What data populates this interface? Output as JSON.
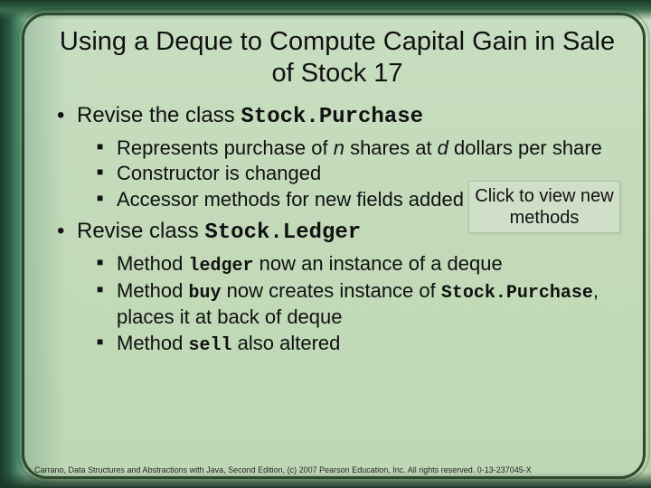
{
  "slide": {
    "title": "Using a Deque to Compute Capital Gain in Sale of Stock 17",
    "bullet1_prefix": "Revise the class ",
    "bullet1_code": "Stock.Purchase",
    "sub1a_a": "Represents purchase of ",
    "sub1a_n": "n",
    "sub1a_b": " shares at ",
    "sub1a_d": "d",
    "sub1a_c": " dollars per share",
    "sub1b": "Constructor is changed",
    "sub1c": "Accessor methods for new fields added",
    "bullet2_prefix": "Revise class ",
    "bullet2_code": "Stock.Ledger",
    "sub2a_a": "Method ",
    "sub2a_code": "ledger",
    "sub2a_b": " now an instance of a deque",
    "sub2b_a": "Method ",
    "sub2b_code": "buy",
    "sub2b_b": " now creates instance of ",
    "sub2b_code2": "Stock.Purchase",
    "sub2b_c": ", places it at back of deque",
    "sub2c_a": "Method ",
    "sub2c_code": "sell",
    "sub2c_b": " also altered"
  },
  "callout": "Click to view new methods",
  "footer": "Carrano, Data Structures and Abstractions with Java, Second Edition, (c) 2007 Pearson Education, Inc. All rights reserved. 0-13-237045-X",
  "colors": {
    "text": "#111111",
    "frame_border": "#2a4a2a",
    "slide_bg": "#c8e1c3",
    "callout_bg": "#d0e0c8"
  }
}
